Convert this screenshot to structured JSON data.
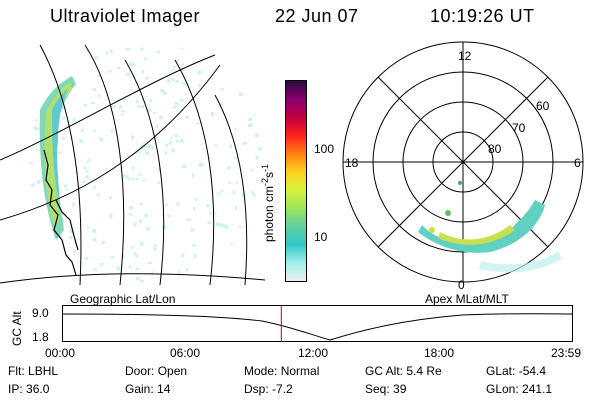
{
  "header": {
    "title": "Ultraviolet Imager",
    "date": "22 Jun 07",
    "time": "10:19:26 UT"
  },
  "colorbar": {
    "label": "photon cm",
    "label_sup1": "-2",
    "label_mid": "s",
    "label_sup2": "-1",
    "ticks": [
      {
        "label": "100",
        "value": 100
      },
      {
        "label": "10",
        "value": 10
      }
    ],
    "colors": [
      "#eeeeee",
      "#a0f0e8",
      "#30c8c8",
      "#5fd0a0",
      "#9be55a",
      "#d7f040",
      "#ffd020",
      "#ff8010",
      "#ff2020",
      "#c00040",
      "#880070",
      "#2a0a40"
    ]
  },
  "left_panel": {
    "label": "Geographic Lat/Lon",
    "outline_color": "#000000"
  },
  "right_panel": {
    "label": "Apex MLat/MLT",
    "mlt_labels": {
      "top": "12",
      "left": "18",
      "right": "6",
      "bottom": "0"
    },
    "lat_labels": [
      "60",
      "70",
      "80"
    ]
  },
  "altitude_plot": {
    "ylabel": "GC Alt",
    "y_ticks": [
      "9.0",
      "1.8"
    ],
    "x_ticks": [
      "00:00",
      "06:00",
      "12:00",
      "18:00",
      "23:59"
    ],
    "current_time_marker_hours": 10.32,
    "marker_color": "#cc0000"
  },
  "info": {
    "row1": [
      {
        "key": "Flt:",
        "val": "LBHL"
      },
      {
        "key": "Door:",
        "val": "Open"
      },
      {
        "key": "Mode:",
        "val": "Normal"
      },
      {
        "key": "GC Alt:",
        "val": "5.4 Re"
      },
      {
        "key": "GLat:",
        "val": "-54.4"
      }
    ],
    "row2": [
      {
        "key": "IP:",
        "val": "36.0"
      },
      {
        "key": "Gain:",
        "val": "14"
      },
      {
        "key": "Dsp:",
        "val": "-7.2"
      },
      {
        "key": "Seq:",
        "val": "39"
      },
      {
        "key": "GLon:",
        "val": "241.1"
      }
    ]
  }
}
